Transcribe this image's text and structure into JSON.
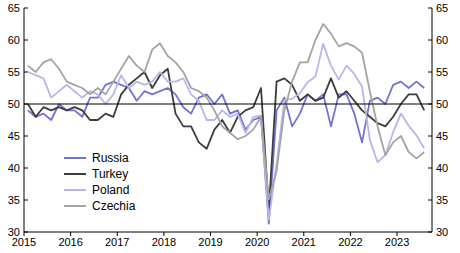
{
  "chart_data": {
    "type": "line",
    "x": [
      2015.083,
      2015.25,
      2015.417,
      2015.583,
      2015.75,
      2015.917,
      2016.083,
      2016.25,
      2016.417,
      2016.583,
      2016.75,
      2016.917,
      2017.083,
      2017.25,
      2017.417,
      2017.583,
      2017.75,
      2017.917,
      2018.083,
      2018.25,
      2018.417,
      2018.583,
      2018.75,
      2018.917,
      2019.083,
      2019.25,
      2019.417,
      2019.583,
      2019.75,
      2019.917,
      2020.083,
      2020.25,
      2020.417,
      2020.583,
      2020.75,
      2020.917,
      2021.083,
      2021.25,
      2021.417,
      2021.583,
      2021.75,
      2021.917,
      2022.083,
      2022.25,
      2022.417,
      2022.583,
      2022.75,
      2022.917,
      2023.083,
      2023.25,
      2023.417,
      2023.583
    ],
    "series": [
      {
        "name": "Russia",
        "color": "#7272d4",
        "values": [
          49,
          48,
          48.5,
          47.5,
          50,
          49,
          49,
          48,
          51,
          51,
          53,
          53.5,
          53,
          52.5,
          50.5,
          52,
          51.5,
          52,
          52.5,
          51.5,
          49.5,
          48.5,
          51,
          51.5,
          50,
          51.5,
          48.5,
          49,
          46,
          47.5,
          48,
          31.3,
          49,
          51,
          46.5,
          48.5,
          51.5,
          50.5,
          51.5,
          46.5,
          51.5,
          51.5,
          48.5,
          44,
          50.5,
          51,
          50,
          53,
          53.5,
          52.5,
          53.5,
          52.5
        ]
      },
      {
        "name": "Turkey",
        "color": "#3c3c3c",
        "values": [
          50,
          48,
          49.5,
          49,
          49.5,
          49,
          49.5,
          49,
          47.5,
          47.5,
          48.5,
          48,
          51.5,
          53,
          54,
          55,
          52.5,
          54.5,
          55.5,
          48.5,
          46.5,
          46.5,
          44,
          43,
          46,
          47.5,
          45.5,
          48,
          49,
          49.5,
          52.5,
          33.4,
          53.5,
          54,
          53,
          50.5,
          51.5,
          50.5,
          51,
          54,
          51,
          52,
          50.5,
          49,
          48,
          47,
          46.5,
          48,
          50,
          51.5,
          51.5,
          49
        ]
      },
      {
        "name": "Poland",
        "color": "#b6b6ec",
        "values": [
          55,
          54.5,
          54,
          51,
          52,
          53,
          52,
          51,
          52,
          51.5,
          50,
          51.5,
          54.5,
          52.5,
          53.5,
          53,
          53.5,
          55,
          53.5,
          53.5,
          54,
          51.5,
          50.5,
          47.5,
          47.5,
          49,
          48,
          48.5,
          45.5,
          48,
          48.2,
          31.9,
          40.6,
          50.6,
          50.8,
          51.7,
          53.4,
          54.3,
          59.4,
          56,
          53.8,
          56,
          54.7,
          52.7,
          44.4,
          40.9,
          42,
          45.6,
          48.5,
          46.6,
          45.1,
          43.1
        ]
      },
      {
        "name": "Czechia",
        "color": "#a4a4a4",
        "values": [
          56,
          55,
          56.5,
          57,
          55.5,
          53.5,
          53,
          52.5,
          51.5,
          52.5,
          51.5,
          53.5,
          55.5,
          57.5,
          56,
          55,
          58.5,
          59.5,
          57.5,
          56.5,
          55,
          52.5,
          52,
          51,
          49,
          46.5,
          45.5,
          44.5,
          45,
          46,
          48,
          35.1,
          39.5,
          49,
          53.5,
          56.5,
          56.5,
          60,
          62.5,
          61,
          59,
          59.5,
          59,
          58,
          52,
          46.5,
          42,
          44,
          45,
          42.5,
          41.5,
          42.5
        ]
      }
    ],
    "xlim": [
      2015,
      2023.75
    ],
    "xticks": [
      2015,
      2016,
      2017,
      2018,
      2019,
      2020,
      2021,
      2022,
      2023
    ],
    "ylim": [
      30,
      65
    ],
    "yticks": [
      30,
      35,
      40,
      45,
      50,
      55,
      60,
      65
    ],
    "y2lim": [
      30,
      65
    ],
    "y2ticks": [
      30,
      35,
      40,
      45,
      50,
      55,
      60,
      65
    ],
    "hlines": [
      50
    ],
    "grid": false,
    "legend": "lower left"
  }
}
